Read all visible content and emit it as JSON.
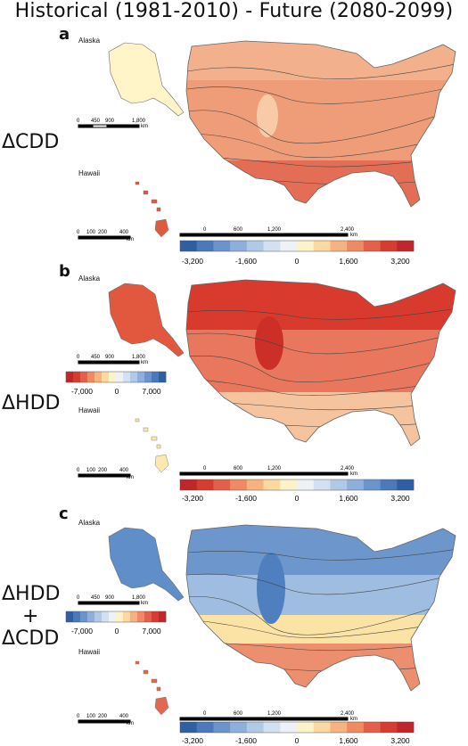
{
  "title": "Historical (1981-2010) - Future (2080-2099)",
  "panels": [
    {
      "letter": "a",
      "side_label": [
        "ΔCDD"
      ],
      "alaska_label": "Alaska",
      "hawaii_label": "Hawaii",
      "alaska_scale": [
        "0",
        "450",
        "900",
        "1,800",
        "km"
      ],
      "hawaii_scale": [
        "0",
        "100",
        "200",
        "400",
        "km"
      ],
      "conus_scale": [
        "0",
        "600",
        "1,200",
        "2,400",
        "km"
      ],
      "colorbar_ticks": [
        "-3,200",
        "-1,600",
        "0",
        "1,600",
        "3,200"
      ],
      "colors": {
        "alaska": "#fff5c8",
        "hawaii": "#e05a40",
        "conus_main": "#ef9c78",
        "conus_south": "#e36e55",
        "conus_north": "#f3b08c"
      }
    },
    {
      "letter": "b",
      "side_label": [
        "ΔHDD"
      ],
      "alaska_label": "Alaska",
      "hawaii_label": "Hawaii",
      "alaska_scale": [
        "0",
        "450",
        "900",
        "1,800",
        "km"
      ],
      "hawaii_scale": [
        "0",
        "100",
        "200",
        "400",
        "km"
      ],
      "conus_scale": [
        "0",
        "600",
        "1,200",
        "2,400",
        "km"
      ],
      "inset_colorbar_ticks": [
        "-7,000",
        "0",
        "7,000"
      ],
      "colorbar_ticks": [
        "-3,200",
        "-1,600",
        "0",
        "1,600",
        "3,200"
      ],
      "colors": {
        "alaska": "#e1583f",
        "hawaii": "#fde9b0",
        "conus_main": "#e8775d",
        "conus_north": "#d93a2e",
        "conus_south": "#f6c39f"
      }
    },
    {
      "letter": "c",
      "side_label": [
        "ΔHDD",
        "+",
        "ΔCDD"
      ],
      "alaska_label": "Alaska",
      "hawaii_label": "Hawaii",
      "alaska_scale": [
        "0",
        "450",
        "900",
        "1,800",
        "km"
      ],
      "hawaii_scale": [
        "0",
        "100",
        "200",
        "400",
        "km"
      ],
      "conus_scale": [
        "0",
        "600",
        "1,200",
        "2,400",
        "km"
      ],
      "inset_colorbar_ticks": [
        "-7,000",
        "0",
        "7,000"
      ],
      "colorbar_ticks": [
        "-3,200",
        "-1,600",
        "0",
        "1,600",
        "3,200"
      ],
      "colors": {
        "alaska": "#5f8ec8",
        "hawaii": "#e4684f",
        "conus_main": "#9fbde0",
        "conus_north": "#6d97cc",
        "conus_mid": "#fbe3a6",
        "conus_south": "#ec8f6f"
      }
    }
  ],
  "colorbar_colors": {
    "blue_to_red": [
      "#2f5fa3",
      "#4b7abb",
      "#6a94cb",
      "#8eafdb",
      "#b0c9e6",
      "#d2e0f1",
      "#eef2f6",
      "#fdf3c8",
      "#fbd9a0",
      "#f6b37f",
      "#ef8a63",
      "#e3614a",
      "#d63d30",
      "#c0262a"
    ],
    "red_to_blue": [
      "#c0262a",
      "#d63d30",
      "#e3614a",
      "#ef8a63",
      "#f6b37f",
      "#fbd9a0",
      "#fdf3c8",
      "#eef2f6",
      "#d2e0f1",
      "#b0c9e6",
      "#8eafdb",
      "#6a94cb",
      "#4b7abb",
      "#2f5fa3"
    ]
  }
}
